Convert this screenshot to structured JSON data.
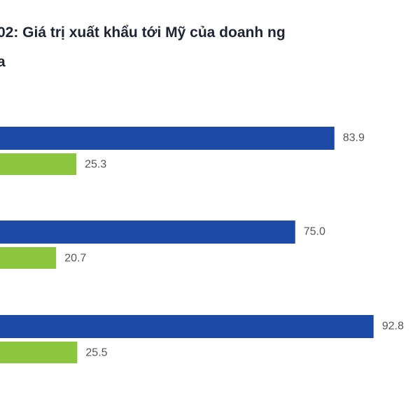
{
  "chart_data": {
    "type": "hbar",
    "title_lines": [
      "02: Giá trị xuất khẩu tới Mỹ của doanh ng",
      "a"
    ],
    "series": [
      {
        "color": "#1c4aa6",
        "values": [
          83.9,
          75.0,
          92.8
        ],
        "value_labels": [
          "83.9",
          "75.0",
          "92.8"
        ]
      },
      {
        "color": "#8cc63f",
        "values": [
          25.3,
          20.7,
          25.5
        ],
        "value_labels": [
          "25.3",
          "20.7",
          "25.5"
        ]
      }
    ]
  }
}
